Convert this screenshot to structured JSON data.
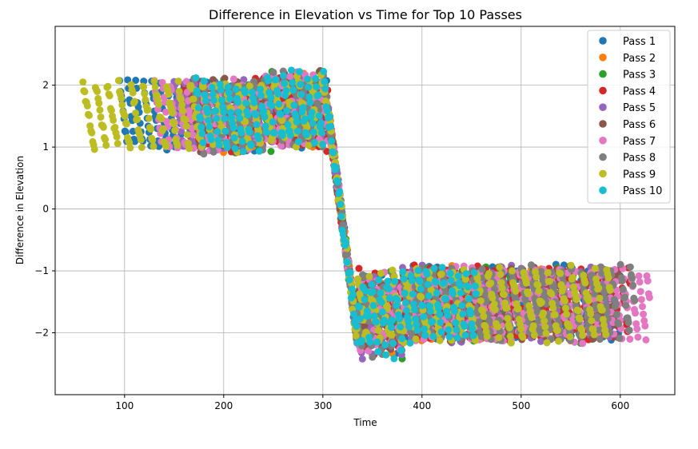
{
  "chart_data": {
    "type": "scatter",
    "title": "Difference in Elevation vs Time for Top 10 Passes",
    "xlabel": "Time",
    "ylabel": "Difference in Elevation",
    "xlim": [
      30,
      655
    ],
    "ylim": [
      -3.0,
      2.95
    ],
    "xticks": [
      100,
      200,
      300,
      400,
      500,
      600
    ],
    "yticks": [
      -2,
      -1,
      0,
      1,
      2
    ],
    "grid": true,
    "legend_position": "top-right",
    "profile": {
      "note_free": true,
      "drop_time": [
        305,
        335
      ],
      "high_band": [
        0.9,
        2.2
      ],
      "low_band": [
        -2.3,
        -0.9
      ]
    },
    "series": [
      {
        "name": "Pass 1",
        "color": "#1f77b4",
        "start": 95,
        "end": 600
      },
      {
        "name": "Pass 2",
        "color": "#ff7f0e",
        "start": 180,
        "end": 560
      },
      {
        "name": "Pass 3",
        "color": "#2ca02c",
        "start": 200,
        "end": 580
      },
      {
        "name": "Pass 4",
        "color": "#d62728",
        "start": 160,
        "end": 610
      },
      {
        "name": "Pass 5",
        "color": "#9467bd",
        "start": 150,
        "end": 590
      },
      {
        "name": "Pass 6",
        "color": "#8c564b",
        "start": 165,
        "end": 600
      },
      {
        "name": "Pass 7",
        "color": "#e377c2",
        "start": 130,
        "end": 630
      },
      {
        "name": "Pass 8",
        "color": "#7f7f7f",
        "start": 170,
        "end": 615
      },
      {
        "name": "Pass 9",
        "color": "#bcbd22",
        "start": 58,
        "end": 590
      },
      {
        "name": "Pass 10",
        "color": "#17becf",
        "start": 172,
        "end": 455
      }
    ]
  }
}
